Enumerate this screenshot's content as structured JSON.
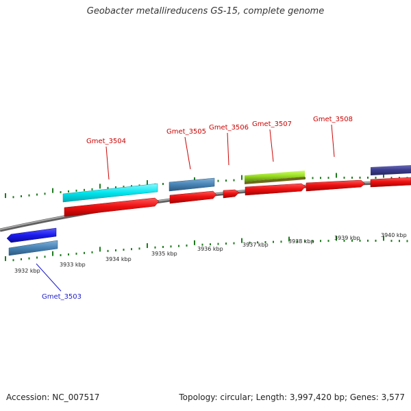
{
  "title": "Geobacter metallireducens GS-15, complete genome",
  "footer": {
    "accession": "Accession: NC_007517",
    "stats": "Topology: circular; Length: 3,997,420 bp; Genes: 3,577"
  },
  "scale_labels": [
    "3932 kbp",
    "3933 kbp",
    "3934 kbp",
    "3935 kbp",
    "3936 kbp",
    "3937 kbp",
    "3938 kbp",
    "3939 kbp",
    "3940 kbp"
  ],
  "genes": [
    {
      "label": "Gmet_3503",
      "color": "#1a1acc",
      "strand": "reverse"
    },
    {
      "label": "Gmet_3504",
      "color": "#cc0000",
      "strand": "forward"
    },
    {
      "label": "Gmet_3505",
      "color": "#cc0000",
      "strand": "forward"
    },
    {
      "label": "Gmet_3506",
      "color": "#cc0000",
      "strand": "forward"
    },
    {
      "label": "Gmet_3507",
      "color": "#cc0000",
      "strand": "forward"
    },
    {
      "label": "Gmet_3508",
      "color": "#cc0000",
      "strand": "forward"
    }
  ],
  "colors": {
    "backbone": "#808080",
    "tick": "#1e7a1e",
    "cds": "#ee1111",
    "cyan_feature": "#00e5ee",
    "steel_feature": "#4682b4",
    "green_feature": "#99dd22",
    "navy_feature": "#3a3a8c",
    "blue_feature": "#1a1aee"
  }
}
